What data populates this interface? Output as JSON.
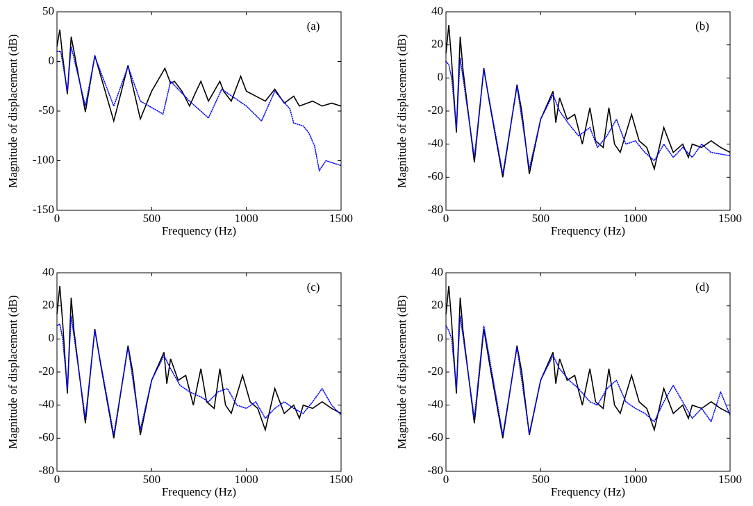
{
  "chart_data": [
    {
      "type": "line",
      "annotation": "(a)",
      "x_label": "Frequency (Hz)",
      "y_label": "Magnitude of displacement (dB)",
      "xlim": [
        0,
        1500
      ],
      "xticks": [
        0,
        500,
        1000,
        1500
      ],
      "ylim": [
        -150,
        50
      ],
      "yticks": [
        -150,
        -100,
        -50,
        0,
        50
      ],
      "series": [
        {
          "color": "#000000",
          "style": "solid",
          "x": [
            0,
            15,
            30,
            55,
            75,
            150,
            200,
            300,
            375,
            440,
            500,
            570,
            600,
            620,
            660,
            700,
            730,
            760,
            800,
            860,
            880,
            920,
            970,
            1000,
            1050,
            1100,
            1150,
            1200,
            1250,
            1280,
            1350,
            1400,
            1450,
            1500
          ],
          "values": [
            15,
            32,
            5,
            -33,
            25,
            -51,
            6,
            -60,
            -4,
            -58,
            -30,
            -7,
            -22,
            -20,
            -30,
            -45,
            -32,
            -20,
            -40,
            -20,
            -30,
            -40,
            -15,
            -30,
            -35,
            -40,
            -28,
            -42,
            -35,
            -45,
            -40,
            -45,
            -42,
            -45
          ]
        },
        {
          "color": "#0000ff",
          "style": "dotted",
          "x": [
            0,
            20,
            55,
            75,
            150,
            200,
            280,
            300,
            375,
            440,
            560,
            600,
            700,
            800,
            870,
            1000,
            1080,
            1150,
            1230,
            1250,
            1300,
            1330,
            1360,
            1385,
            1420,
            1500
          ],
          "values": [
            10,
            10,
            -30,
            15,
            -45,
            5,
            -35,
            -45,
            -5,
            -40,
            -53,
            -20,
            -40,
            -57,
            -28,
            -45,
            -60,
            -30,
            -48,
            -62,
            -65,
            -72,
            -85,
            -110,
            -100,
            -105
          ]
        }
      ]
    },
    {
      "type": "line",
      "annotation": "(b)",
      "x_label": "Frequency (Hz)",
      "y_label": "Magnitude of displacement (dB)",
      "xlim": [
        0,
        1500
      ],
      "xticks": [
        0,
        500,
        1000,
        1500
      ],
      "ylim": [
        -80,
        40
      ],
      "yticks": [
        -80,
        -60,
        -40,
        -20,
        0,
        20,
        40
      ],
      "series": [
        {
          "color": "#000000",
          "style": "solid",
          "x": [
            0,
            15,
            30,
            55,
            75,
            90,
            150,
            200,
            230,
            300,
            375,
            400,
            440,
            500,
            565,
            580,
            600,
            640,
            680,
            720,
            760,
            790,
            830,
            860,
            890,
            920,
            980,
            1020,
            1060,
            1100,
            1150,
            1200,
            1250,
            1280,
            1300,
            1350,
            1400,
            1450,
            1500
          ],
          "values": [
            15,
            32,
            10,
            -33,
            25,
            5,
            -51,
            6,
            -15,
            -60,
            -4,
            -20,
            -58,
            -25,
            -8,
            -27,
            -12,
            -25,
            -22,
            -40,
            -18,
            -38,
            -42,
            -18,
            -40,
            -45,
            -22,
            -38,
            -42,
            -55,
            -30,
            -45,
            -40,
            -48,
            -40,
            -42,
            -38,
            -42,
            -45
          ]
        },
        {
          "color": "#0000ff",
          "style": "dotted",
          "x": [
            0,
            15,
            30,
            55,
            75,
            150,
            200,
            300,
            375,
            440,
            500,
            565,
            600,
            650,
            700,
            760,
            800,
            850,
            900,
            950,
            1000,
            1050,
            1100,
            1150,
            1200,
            1250,
            1300,
            1350,
            1400,
            1450,
            1500
          ],
          "values": [
            10,
            8,
            0,
            -30,
            12,
            -48,
            5,
            -58,
            -5,
            -55,
            -25,
            -10,
            -20,
            -28,
            -35,
            -30,
            -42,
            -35,
            -25,
            -40,
            -38,
            -45,
            -50,
            -40,
            -48,
            -42,
            -48,
            -40,
            -45,
            -46,
            -47
          ]
        }
      ]
    },
    {
      "type": "line",
      "annotation": "(c)",
      "x_label": "Frequency (Hz)",
      "y_label": "Magnitude of displacement (dB)",
      "xlim": [
        0,
        1500
      ],
      "xticks": [
        0,
        500,
        1000,
        1500
      ],
      "ylim": [
        -80,
        40
      ],
      "yticks": [
        -80,
        -60,
        -40,
        -20,
        0,
        20,
        40
      ],
      "series": [
        {
          "color": "#000000",
          "style": "solid",
          "x": [
            0,
            15,
            30,
            55,
            75,
            90,
            150,
            200,
            230,
            300,
            375,
            400,
            440,
            500,
            565,
            580,
            600,
            640,
            680,
            720,
            760,
            790,
            830,
            860,
            890,
            920,
            980,
            1020,
            1060,
            1100,
            1150,
            1200,
            1250,
            1280,
            1300,
            1350,
            1400,
            1450,
            1500
          ],
          "values": [
            15,
            32,
            10,
            -33,
            25,
            5,
            -51,
            6,
            -15,
            -60,
            -4,
            -20,
            -58,
            -25,
            -8,
            -27,
            -12,
            -25,
            -22,
            -40,
            -18,
            -38,
            -42,
            -18,
            -40,
            -45,
            -22,
            -38,
            -42,
            -55,
            -30,
            -45,
            -40,
            -48,
            -40,
            -42,
            -38,
            -42,
            -45
          ]
        },
        {
          "color": "#0000ff",
          "style": "dotted",
          "x": [
            0,
            15,
            30,
            55,
            75,
            150,
            200,
            300,
            375,
            440,
            500,
            565,
            600,
            650,
            700,
            760,
            800,
            850,
            900,
            950,
            1000,
            1050,
            1100,
            1150,
            1200,
            1250,
            1300,
            1350,
            1400,
            1450,
            1500
          ],
          "values": [
            8,
            9,
            0,
            -30,
            14,
            -48,
            5,
            -58,
            -5,
            -55,
            -25,
            -10,
            -18,
            -28,
            -32,
            -35,
            -38,
            -32,
            -30,
            -40,
            -42,
            -38,
            -48,
            -42,
            -38,
            -42,
            -45,
            -38,
            -30,
            -40,
            -46
          ]
        }
      ]
    },
    {
      "type": "line",
      "annotation": "(d)",
      "x_label": "Frequency (Hz)",
      "y_label": "Magnitude of displacement (dB)",
      "xlim": [
        0,
        1500
      ],
      "xticks": [
        0,
        500,
        1000,
        1500
      ],
      "ylim": [
        -80,
        40
      ],
      "yticks": [
        -80,
        -60,
        -40,
        -20,
        0,
        20,
        40
      ],
      "series": [
        {
          "color": "#000000",
          "style": "solid",
          "x": [
            0,
            15,
            30,
            55,
            75,
            90,
            150,
            200,
            230,
            300,
            375,
            400,
            440,
            500,
            565,
            580,
            600,
            640,
            680,
            720,
            760,
            790,
            830,
            860,
            890,
            920,
            980,
            1020,
            1060,
            1100,
            1150,
            1200,
            1250,
            1280,
            1300,
            1350,
            1400,
            1450,
            1500
          ],
          "values": [
            15,
            32,
            10,
            -33,
            25,
            5,
            -51,
            6,
            -15,
            -60,
            -4,
            -20,
            -58,
            -25,
            -8,
            -27,
            -12,
            -25,
            -22,
            -40,
            -18,
            -38,
            -42,
            -18,
            -40,
            -45,
            -22,
            -38,
            -42,
            -55,
            -30,
            -45,
            -40,
            -48,
            -40,
            -42,
            -38,
            -42,
            -45
          ]
        },
        {
          "color": "#0000ff",
          "style": "dotted",
          "x": [
            0,
            15,
            30,
            55,
            75,
            150,
            200,
            300,
            375,
            440,
            500,
            565,
            600,
            650,
            700,
            760,
            800,
            850,
            900,
            950,
            1000,
            1050,
            1100,
            1150,
            1200,
            1250,
            1300,
            1350,
            1400,
            1450,
            1500
          ],
          "values": [
            8,
            5,
            0,
            -30,
            14,
            -48,
            8,
            -58,
            -5,
            -57,
            -25,
            -10,
            -18,
            -25,
            -30,
            -38,
            -40,
            -30,
            -25,
            -38,
            -42,
            -45,
            -50,
            -38,
            -28,
            -38,
            -48,
            -42,
            -50,
            -32,
            -46
          ]
        }
      ]
    }
  ]
}
